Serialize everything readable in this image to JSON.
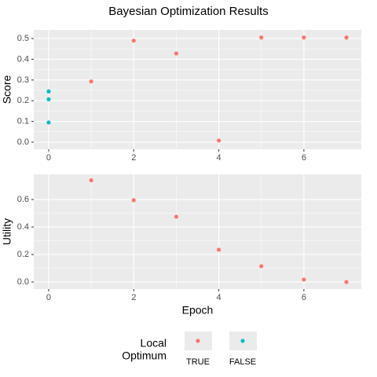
{
  "chart_data": [
    {
      "type": "scatter",
      "title": "Bayesian Optimization Results",
      "y_label": "Score",
      "series": [
        {
          "name": "TRUE",
          "color": "#f8766d",
          "x": [
            1,
            2,
            3,
            4,
            5,
            6,
            7
          ],
          "values": [
            0.293,
            0.49,
            0.428,
            0.008,
            0.505,
            0.505,
            0.505
          ]
        },
        {
          "name": "FALSE",
          "color": "#00bfc4",
          "x": [
            0,
            0,
            0
          ],
          "values": [
            0.245,
            0.207,
            0.095
          ]
        }
      ],
      "xlim": [
        -0.35,
        7.35
      ],
      "xticks": [
        0,
        2,
        4,
        6
      ],
      "ylim": [
        -0.034,
        0.542
      ],
      "yticks": [
        {
          "value": 0,
          "label": "0.0"
        },
        0.1,
        0.2,
        0.3,
        0.4,
        0.5
      ],
      "grid": true
    },
    {
      "type": "scatter",
      "x_label": "Epoch",
      "y_label": "Utility",
      "series": [
        {
          "name": "TRUE",
          "color": "#f8766d",
          "x": [
            1,
            2,
            3,
            4,
            5,
            6,
            7
          ],
          "values": [
            0.74,
            0.595,
            0.475,
            0.235,
            0.115,
            0.018,
            0.0
          ]
        }
      ],
      "xlim": [
        -0.35,
        7.35
      ],
      "xticks": [
        0,
        2,
        4,
        6
      ],
      "ylim": [
        -0.051,
        0.783
      ],
      "yticks": [
        {
          "value": 0,
          "label": "0.0"
        },
        0.2,
        0.4,
        0.6
      ],
      "grid": true
    }
  ],
  "legend": {
    "title_lines": [
      "Local",
      "Optimum"
    ],
    "position": "bottom"
  }
}
